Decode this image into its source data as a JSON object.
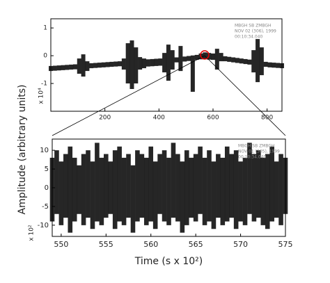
{
  "figure": {
    "ylabel": "Amplitude (arbitrary units)"
  },
  "chart_data": [
    {
      "type": "band",
      "color": "#000000",
      "annotation": [
        "MBGH  SB  ZMBGH",
        "NOV 02 (306), 1999",
        "00:10:34.040"
      ],
      "yscale_label": "x 10⁴",
      "x": [
        0,
        15,
        30,
        45,
        60,
        75,
        90,
        105,
        120,
        135,
        150,
        165,
        180,
        195,
        210,
        225,
        240,
        255,
        270,
        285,
        300,
        315,
        330,
        345,
        360,
        375,
        390,
        405,
        420,
        435,
        450,
        465,
        480,
        495,
        510,
        525,
        540,
        555,
        570,
        585,
        600,
        615,
        630,
        645,
        660,
        675,
        690,
        705,
        720,
        735,
        750,
        765,
        780,
        795,
        810,
        825,
        840,
        855
      ],
      "series": [
        {
          "values": [
            -0.37,
            -0.36,
            -0.35,
            -0.34,
            -0.33,
            -0.32,
            -0.31,
            -0.1,
            0.05,
            -0.2,
            -0.27,
            -0.26,
            -0.25,
            -0.24,
            -0.23,
            -0.22,
            -0.21,
            -0.2,
            -0.1,
            0.45,
            0.55,
            0.3,
            -0.05,
            -0.1,
            -0.13,
            -0.12,
            -0.11,
            -0.1,
            0.1,
            0.4,
            0.2,
            -0.06,
            0.35,
            -0.03,
            -0.01,
            0.01,
            0.03,
            0.08,
            0.12,
            0.1,
            0.08,
            0.25,
            0.1,
            -0.02,
            -0.04,
            -0.06,
            -0.08,
            -0.1,
            -0.12,
            -0.14,
            0.2,
            0.6,
            0.3,
            -0.22,
            -0.24,
            -0.25,
            -0.26,
            -0.27
          ]
        },
        {
          "values": [
            -0.55,
            -0.54,
            -0.53,
            -0.52,
            -0.51,
            -0.5,
            -0.49,
            -0.65,
            -0.75,
            -0.55,
            -0.45,
            -0.44,
            -0.43,
            -0.42,
            -0.41,
            -0.4,
            -0.39,
            -0.38,
            -0.5,
            -1.0,
            -1.2,
            -1.0,
            -0.5,
            -0.45,
            -0.39,
            -0.38,
            -0.37,
            -0.36,
            -0.6,
            -0.9,
            -0.5,
            -0.24,
            -0.55,
            -0.21,
            -0.19,
            -1.3,
            -0.15,
            -0.13,
            -0.12,
            -0.14,
            -0.15,
            -0.5,
            -0.2,
            -0.2,
            -0.22,
            -0.24,
            -0.26,
            -0.28,
            -0.3,
            -0.32,
            -0.6,
            -0.95,
            -0.7,
            -0.4,
            -0.42,
            -0.43,
            -0.44,
            -0.45
          ]
        }
      ],
      "xlim": [
        0,
        855
      ],
      "xticks": [
        200,
        400,
        600,
        800
      ],
      "ylim": [
        -2,
        1.33
      ],
      "yticks": [
        1,
        0,
        -1
      ]
    },
    {
      "type": "band",
      "color": "#000000",
      "annotation": [
        "MBGH  SB  ZMBGH",
        "NOV 01 (305), 1999",
        "00:10:34.040"
      ],
      "yscale_label": "x 10²",
      "xlabel": "Time (s x 10²)",
      "x": [
        549,
        549.5,
        550,
        550.5,
        551,
        551.5,
        552,
        552.5,
        553,
        553.5,
        554,
        554.5,
        555,
        555.5,
        556,
        556.5,
        557,
        557.5,
        558,
        558.5,
        559,
        559.5,
        560,
        560.5,
        561,
        561.5,
        562,
        562.5,
        563,
        563.5,
        564,
        564.5,
        565,
        565.5,
        566,
        566.5,
        567,
        567.5,
        568,
        568.5,
        569,
        569.5,
        570,
        570.5,
        571,
        571.5,
        572,
        572.5,
        573,
        573.5,
        574,
        574.5,
        575
      ],
      "series": [
        {
          "values": [
            8,
            10,
            7,
            9,
            11,
            8,
            6,
            9,
            10,
            7,
            12,
            8,
            9,
            7,
            10,
            11,
            8,
            9,
            6,
            10,
            9,
            8,
            11,
            7,
            9,
            10,
            8,
            12,
            9,
            7,
            10,
            8,
            9,
            11,
            8,
            10,
            7,
            9,
            8,
            11,
            9,
            10,
            7,
            8,
            12,
            9,
            10,
            8,
            9,
            11,
            7,
            9,
            8
          ]
        },
        {
          "values": [
            -9,
            -7,
            -10,
            -8,
            -12,
            -9,
            -7,
            -10,
            -8,
            -11,
            -9,
            -10,
            -8,
            -7,
            -11,
            -9,
            -10,
            -8,
            -12,
            -9,
            -8,
            -10,
            -9,
            -11,
            -7,
            -9,
            -10,
            -8,
            -9,
            -12,
            -10,
            -8,
            -9,
            -7,
            -10,
            -9,
            -11,
            -8,
            -10,
            -9,
            -8,
            -11,
            -9,
            -10,
            -7,
            -9,
            -8,
            -10,
            -11,
            -9,
            -8,
            -10,
            -7
          ]
        }
      ],
      "xlim": [
        549,
        575
      ],
      "xticks": [
        550,
        555,
        560,
        565,
        570,
        575
      ],
      "ylim": [
        -13,
        13
      ],
      "yticks": [
        10,
        5,
        0,
        -5,
        -10
      ]
    }
  ]
}
